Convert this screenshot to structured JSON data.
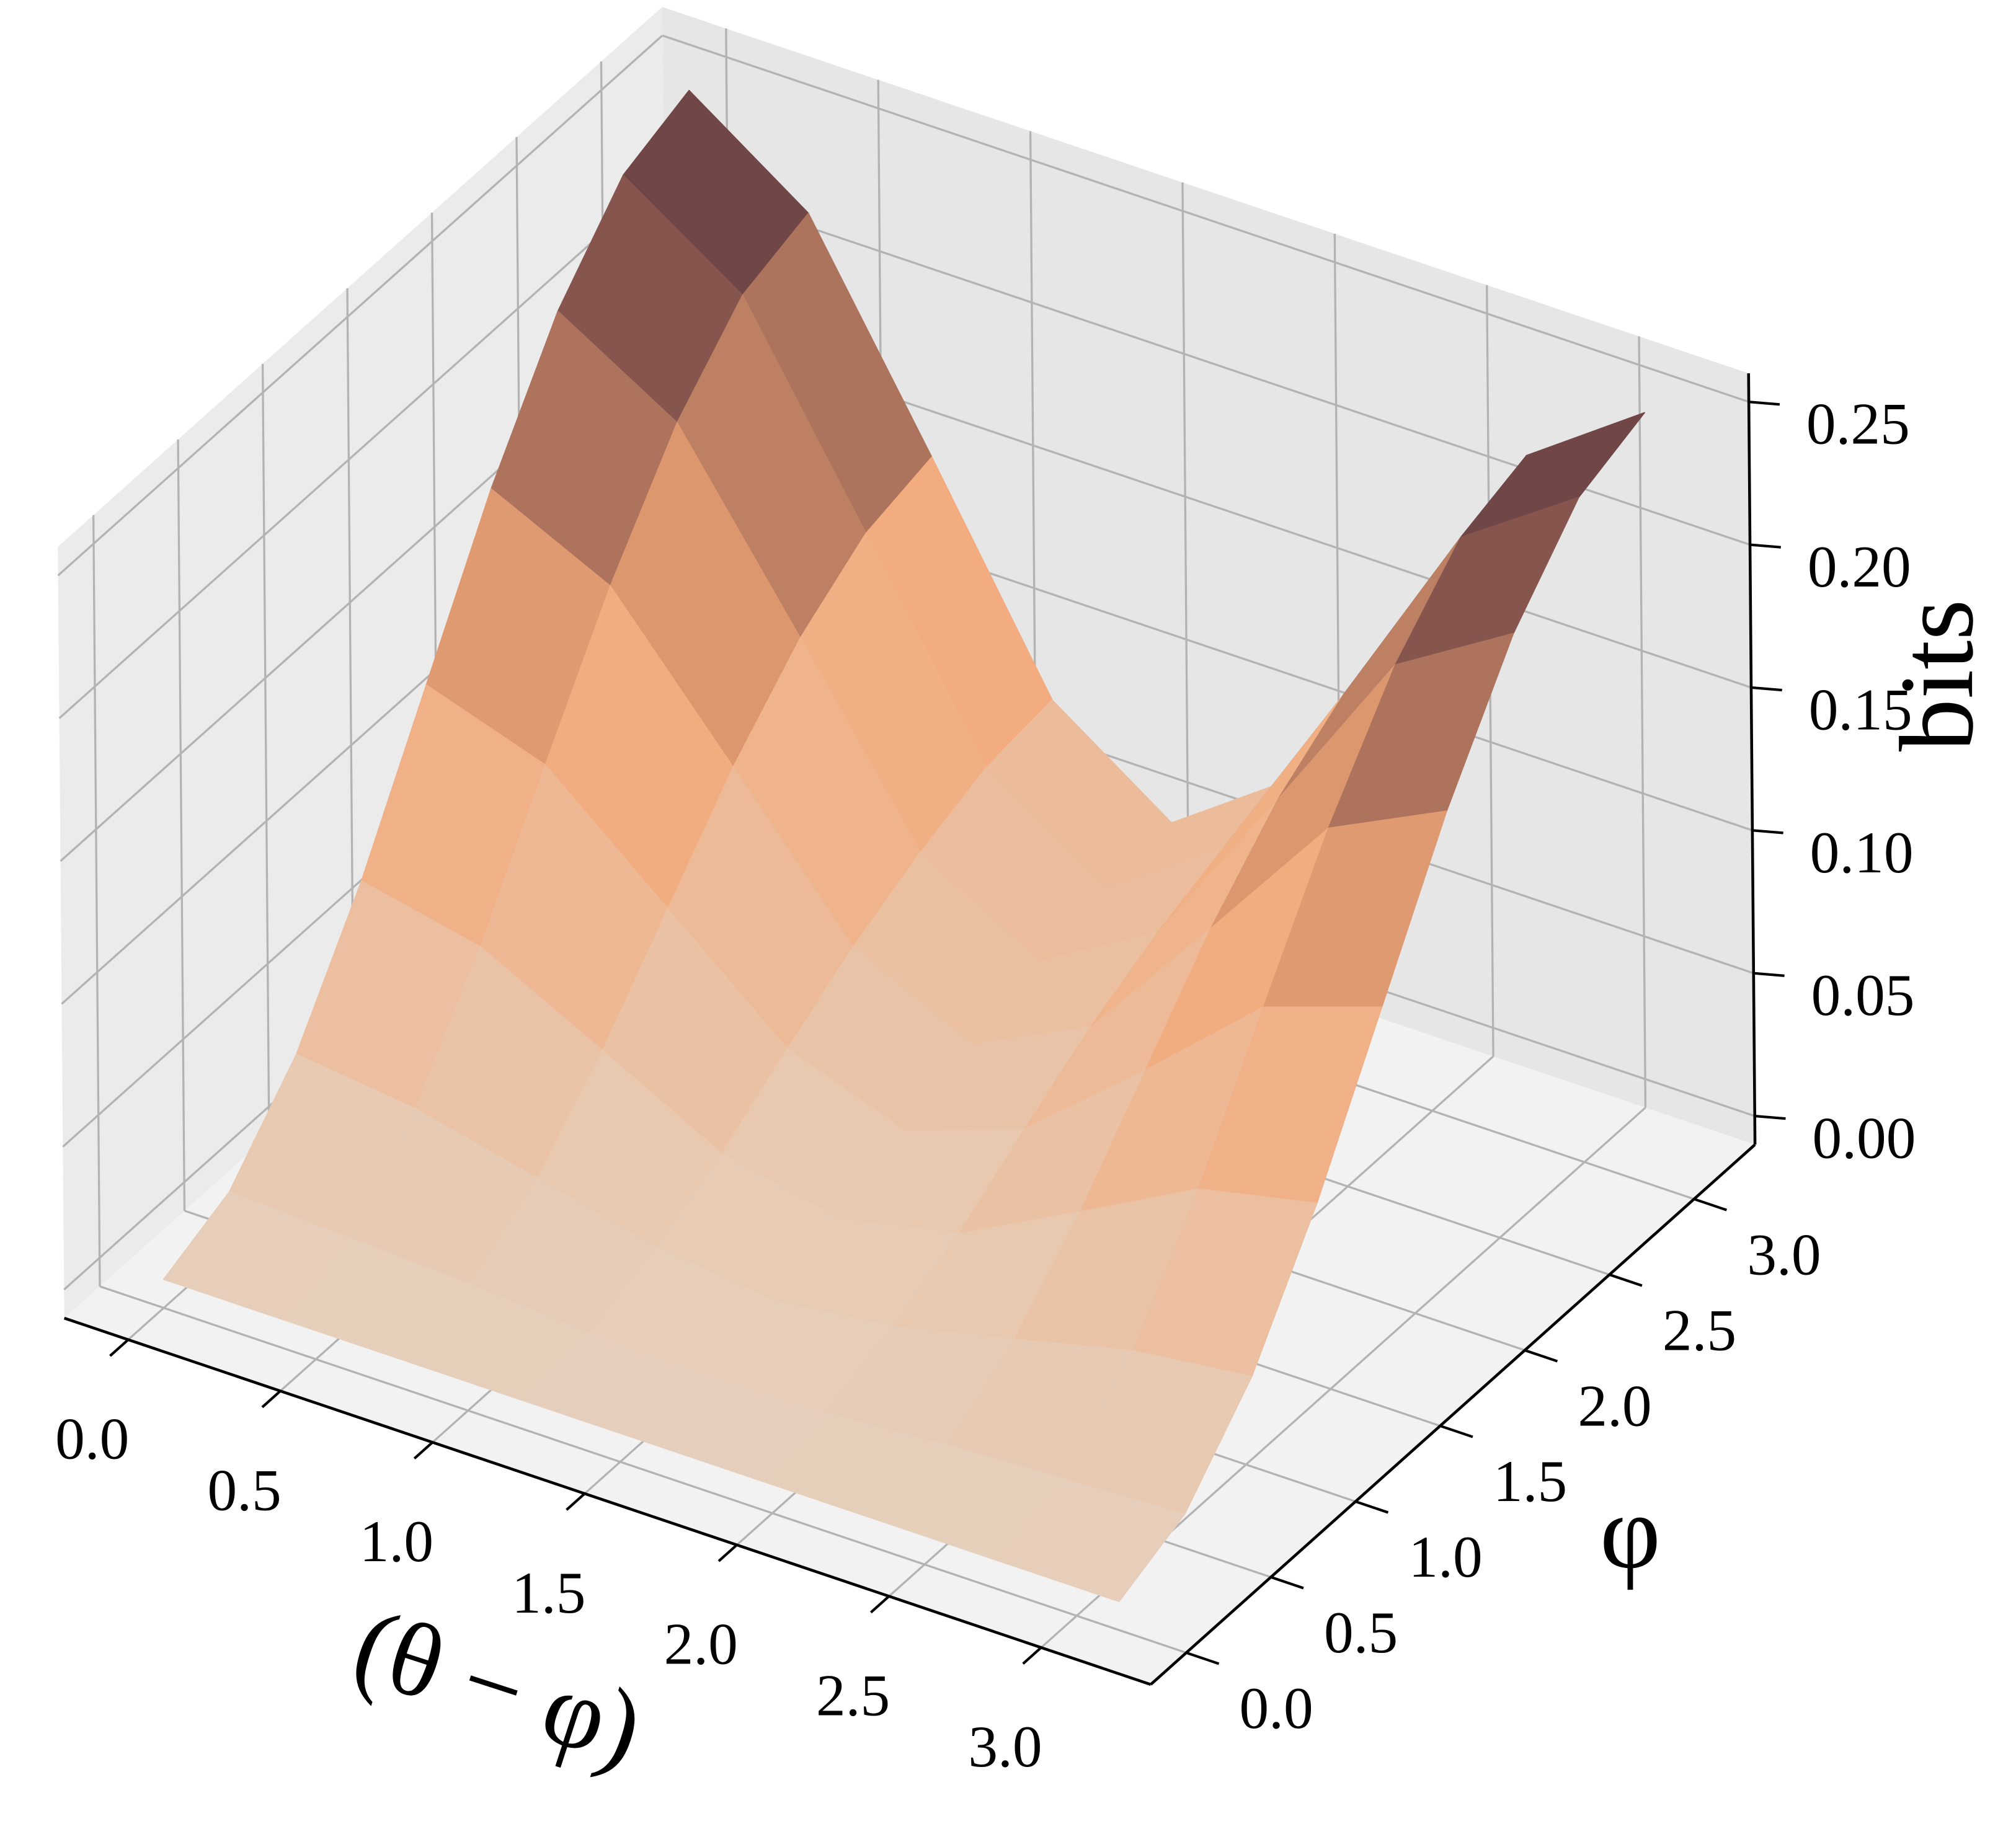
{
  "chart_data": {
    "type": "surface",
    "xlabel": "(θ − φ)",
    "ylabel": "φ",
    "zlabel": "bits",
    "x": [
      0,
      0.39,
      0.79,
      1.18,
      1.57,
      1.96,
      2.36,
      2.75,
      3.14
    ],
    "y": [
      0,
      0.39,
      0.79,
      1.18,
      1.57,
      1.96,
      2.36,
      2.75,
      3.14
    ],
    "z": [
      [
        0,
        0,
        0,
        0,
        0,
        0,
        0,
        0,
        0
      ],
      [
        0.01,
        0.008,
        0.006,
        0.003,
        0.002,
        0.003,
        0.006,
        0.008,
        0.01
      ],
      [
        0.037,
        0.032,
        0.022,
        0.012,
        0.007,
        0.012,
        0.022,
        0.032,
        0.037
      ],
      [
        0.077,
        0.068,
        0.046,
        0.024,
        0.015,
        0.024,
        0.046,
        0.068,
        0.077
      ],
      [
        0.125,
        0.111,
        0.075,
        0.04,
        0.025,
        0.04,
        0.075,
        0.111,
        0.125
      ],
      [
        0.173,
        0.153,
        0.104,
        0.055,
        0.035,
        0.055,
        0.104,
        0.153,
        0.173
      ],
      [
        0.214,
        0.189,
        0.128,
        0.067,
        0.043,
        0.067,
        0.128,
        0.189,
        0.214
      ],
      [
        0.241,
        0.213,
        0.144,
        0.076,
        0.048,
        0.076,
        0.144,
        0.213,
        0.241
      ],
      [
        0.25,
        0.221,
        0.15,
        0.079,
        0.05,
        0.079,
        0.15,
        0.221,
        0.25
      ]
    ],
    "xlim": [
      -0.21,
      3.36
    ],
    "ylim": [
      -0.21,
      3.36
    ],
    "zlim": [
      -0.01,
      0.26
    ],
    "xticks": [
      {
        "value": 0,
        "label": "0.0"
      },
      0.5,
      {
        "value": 1,
        "label": "1.0"
      },
      1.5,
      {
        "value": 2,
        "label": "2.0"
      },
      2.5,
      {
        "value": 3,
        "label": "3.0"
      }
    ],
    "yticks": [
      {
        "value": 0,
        "label": "0.0"
      },
      0.5,
      {
        "value": 1,
        "label": "1.0"
      },
      1.5,
      {
        "value": 2,
        "label": "2.0"
      },
      2.5,
      {
        "value": 3,
        "label": "3.0"
      }
    ],
    "zticks": [
      {
        "value": 0,
        "label": "0.00"
      },
      0.05,
      {
        "value": 0.1,
        "label": "0.10"
      },
      0.15,
      {
        "value": 0.2,
        "label": "0.20"
      },
      0.25
    ],
    "colormap": [
      "#e4d3c2",
      "#f3a878",
      "#4e2c38"
    ],
    "back_colormap": [
      "#c4e2f4",
      "#1d5ea6"
    ],
    "grid": true
  }
}
